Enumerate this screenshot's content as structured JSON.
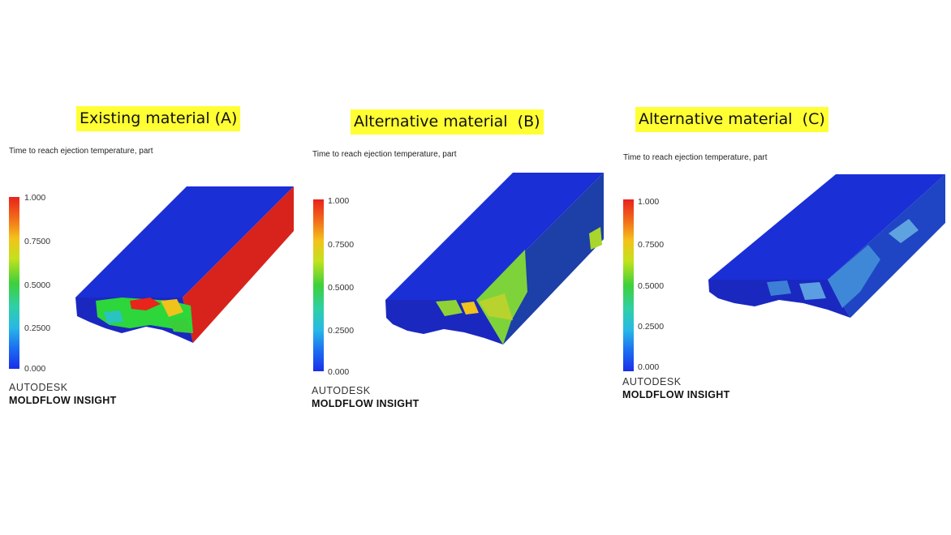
{
  "panels": [
    {
      "title": "Existing material (A)",
      "caption": "Time to reach ejection temperature, part",
      "legend_ticks": [
        "1.000",
        "0.7500",
        "0.5000",
        "0.2500",
        "0.000"
      ],
      "brand_line1": "AUTODESK",
      "brand_line2": "MOLDFLOW INSIGHT",
      "side_color": "#d8231c"
    },
    {
      "title": "Alternative material  (B)",
      "caption": "Time to reach ejection temperature, part",
      "legend_ticks": [
        "1.000",
        "0.7500",
        "0.5000",
        "0.2500",
        "0.000"
      ],
      "brand_line1": "AUTODESK",
      "brand_line2": "MOLDFLOW INSIGHT",
      "side_color": "#1c3fa8"
    },
    {
      "title": "Alternative material  (C)",
      "caption": "Time to reach ejection temperature, part",
      "legend_ticks": [
        "1.000",
        "0.7500",
        "0.5000",
        "0.2500",
        "0.000"
      ],
      "brand_line1": "AUTODESK",
      "brand_line2": "MOLDFLOW INSIGHT",
      "side_color": "#1f45c4"
    }
  ],
  "colors": {
    "title_highlight": "#ffff33",
    "part_blue": "#1a2fd4",
    "hot_red": "#d8231c"
  }
}
